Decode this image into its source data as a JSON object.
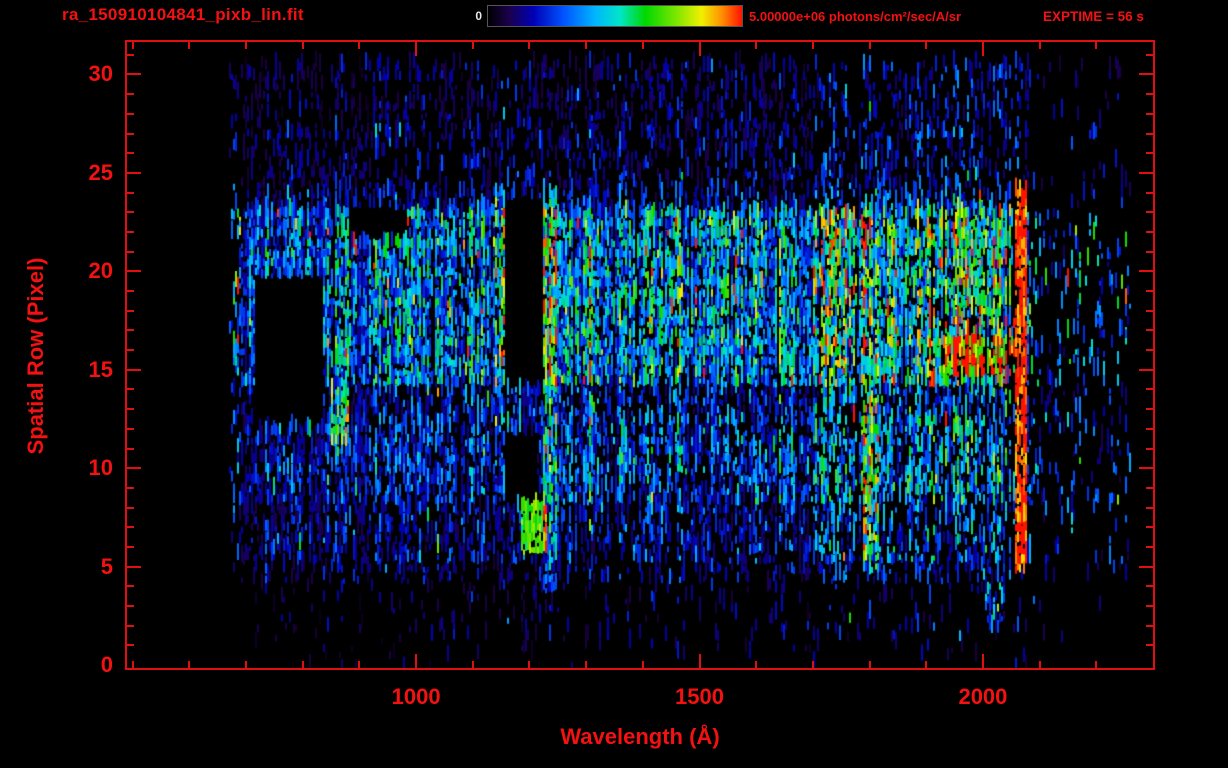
{
  "header": {
    "filename": "ra_150910104841_pixb_lin.fit",
    "exptime": "EXPTIME = 56 s",
    "colorbar": {
      "min_label": "0",
      "max_label": "5.00000e+06 photons/cm²/sec/A/sr"
    }
  },
  "colors": {
    "background": "#000000",
    "axis": "#f41111",
    "frame": "#e01010",
    "colorbar_zero_label": "#e8e8e8"
  },
  "chart_data": {
    "type": "heatmap",
    "title": "ra_150910104841_pixb_lin.fit",
    "xlabel": "Wavelength (Å)",
    "ylabel": "Spatial Row (Pixel)",
    "x_axis": {
      "min": 490,
      "max": 2300,
      "major_ticks": [
        1000,
        1500,
        2000
      ],
      "minor_step": 100
    },
    "y_axis": {
      "min": -0.15,
      "max": 31.65,
      "major_ticks": [
        0,
        5,
        10,
        15,
        20,
        25,
        30
      ],
      "minor_step": 1
    },
    "colorbar": {
      "min": 0,
      "max": 5000000,
      "units": "photons/cm²/sec/A/sr"
    },
    "exposure_time_s": 56,
    "grid": false,
    "legend": null,
    "data_extent": {
      "wavelength_angstrom": [
        665,
        2150
      ],
      "spatial_rows": [
        0,
        30
      ]
    },
    "summary": "2D far-UV spectral image (photon flux vs wavelength ~670-2100 A and spatial row 0-30). Bright emission band over rows ~14-23, stronger toward long wavelengths; secondary band rows ~8-13; airglow column near 1200-1310 A with a red/orange hotspot at rows ~6-8 near 1200 A; saturated red detector edge near 2060-2075 A; black data-gap rectangles near 715-835 A rows 12-19, 1155-1225 A rows 8-11.5 and rows 14-23.5; sparse blue speckle elsewhere.",
    "colormap": [
      {
        "t": 0.0,
        "c": "#000000"
      },
      {
        "t": 0.08,
        "c": "#1b0048"
      },
      {
        "t": 0.18,
        "c": "#0000b8"
      },
      {
        "t": 0.3,
        "c": "#0055ff"
      },
      {
        "t": 0.42,
        "c": "#00b4ff"
      },
      {
        "t": 0.52,
        "c": "#00e6c8"
      },
      {
        "t": 0.62,
        "c": "#00d800"
      },
      {
        "t": 0.74,
        "c": "#7ce600"
      },
      {
        "t": 0.84,
        "c": "#f0f000"
      },
      {
        "t": 0.92,
        "c": "#ff9000"
      },
      {
        "t": 1.0,
        "c": "#ff1200"
      }
    ],
    "render": {
      "seed": 20150910,
      "lambda_range": [
        665,
        2260
      ],
      "red_edge_end": 2080,
      "bands": [
        {
          "rows": [
            -0.2,
            1
          ],
          "d": 0.03,
          "l": 0.1
        },
        {
          "rows": [
            1,
            4
          ],
          "d": 0.09,
          "l": 0.12
        },
        {
          "rows": [
            4,
            5.2
          ],
          "d": 0.3,
          "l": 0.16
        },
        {
          "rows": [
            5.2,
            8
          ],
          "d": 0.48,
          "l": 0.2
        },
        {
          "rows": [
            8,
            12.8
          ],
          "d": 0.62,
          "l": 0.26
        },
        {
          "rows": [
            12.8,
            14.2
          ],
          "d": 0.52,
          "l": 0.23
        },
        {
          "rows": [
            14.2,
            23.3
          ],
          "d": 0.85,
          "l": 0.37
        },
        {
          "rows": [
            23.3,
            24.3
          ],
          "d": 0.42,
          "l": 0.2
        },
        {
          "rows": [
            24.3,
            27
          ],
          "d": 0.3,
          "l": 0.15
        },
        {
          "rows": [
            27,
            30.4
          ],
          "d": 0.27,
          "l": 0.13
        }
      ],
      "x_gain": [
        {
          "lam": [
            490,
            900
          ],
          "g": 0.8
        },
        {
          "lam": [
            900,
            1300
          ],
          "g": 0.9
        },
        {
          "lam": [
            1300,
            1700
          ],
          "g": 1.0
        },
        {
          "lam": [
            1700,
            2100
          ],
          "g": 1.3
        },
        {
          "lam": [
            2100,
            2300
          ],
          "g": 0.9
        }
      ],
      "features": [
        {
          "name": "gap-left",
          "lam": [
            715,
            836
          ],
          "rows": [
            12,
            19.4
          ],
          "black": true
        },
        {
          "name": "gap-lya-upper",
          "lam": [
            1158,
            1224
          ],
          "rows": [
            14.1,
            23.4
          ],
          "black": true
        },
        {
          "name": "gap-lya-lower",
          "lam": [
            1156,
            1212
          ],
          "rows": [
            8.2,
            11.6
          ],
          "black": true
        },
        {
          "name": "gap-small-upper-left",
          "lam": [
            880,
            985
          ],
          "rows": [
            21.5,
            23.3
          ],
          "black": true
        },
        {
          "name": "lya-column",
          "lam": [
            1225,
            1248
          ],
          "rows": [
            3.5,
            24
          ],
          "boost": 1.7,
          "density": 0.9
        },
        {
          "name": "lya-column-left",
          "lam": [
            1140,
            1158
          ],
          "rows": [
            11.5,
            24
          ],
          "boost": 1.4,
          "density": 0.85
        },
        {
          "name": "lya-hotspot",
          "lam": [
            1186,
            1232
          ],
          "rows": [
            5.4,
            8
          ],
          "boost": 2.2,
          "density": 0.95,
          "vmin": 0.55
        },
        {
          "name": "lya-bottom-tail",
          "lam": [
            1185,
            1215
          ],
          "rows": [
            -0.1,
            4
          ],
          "density": 0.3
        },
        {
          "name": "oi-1304-column",
          "lam": [
            1298,
            1316
          ],
          "rows": [
            8,
            23.5
          ],
          "boost": 1.5,
          "density": 0.9
        },
        {
          "name": "green-column-855",
          "lam": [
            848,
            880
          ],
          "rows": [
            11.2,
            14
          ],
          "boost": 1.9,
          "density": 0.95
        },
        {
          "name": "green-column-1800",
          "lam": [
            1788,
            1818
          ],
          "rows": [
            4.5,
            13.5
          ],
          "boost": 1.7,
          "density": 0.9
        },
        {
          "name": "bright-streak-right",
          "lam": [
            1930,
            2062
          ],
          "rows": [
            14.6,
            16.6
          ],
          "boost": 1.7,
          "vmin": 0.5
        },
        {
          "name": "red-edge",
          "lam": [
            2058,
            2076
          ],
          "rows": [
            4.8,
            24
          ],
          "density": 0.92,
          "vmin": 0.85
        },
        {
          "name": "green-bottom-right",
          "lam": [
            2005,
            2040
          ],
          "rows": [
            1.8,
            4.2
          ],
          "boost": 1.8,
          "density": 0.5
        }
      ]
    }
  }
}
